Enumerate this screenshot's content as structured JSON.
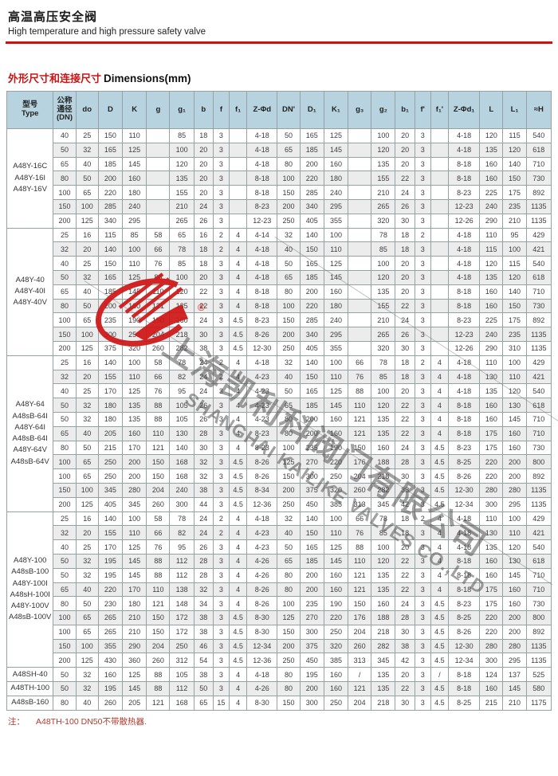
{
  "page": {
    "title_cn": "高温高压安全阀",
    "title_en": "High temperature and high pressure safety valve",
    "dim_heading_cn": "外形尺寸和连接尺寸",
    "dim_heading_en": "Dimensions(mm)",
    "note_prefix": "注：",
    "note_text": "A48TH-100  DN50不带散热器.",
    "accent_red": "#cc1111",
    "header_bg": "#b6d3df"
  },
  "watermark": {
    "company_cn": "上海凯利科阀门有限公司",
    "company_en": "SHANGHAI KAILIKE VALVES CO.,LTD",
    "registered_mark": "®",
    "logo_color": "#cf1717"
  },
  "table": {
    "col_type": {
      "line1": "型号",
      "line2": "Type"
    },
    "col_dn": {
      "line1": "公称",
      "line2": "通径",
      "line3": "(DN)"
    },
    "data_columns": [
      "do",
      "D",
      "K",
      "g",
      "g₁",
      "b",
      "f",
      "f₁",
      "Z-Φd",
      "DN'",
      "D₁",
      "K₁",
      "g₃",
      "g₂",
      "b₁",
      "f'",
      "f₁'",
      "Z-Φd₁",
      "L",
      "L₁",
      "≈H"
    ],
    "sections": [
      {
        "type_lines": [
          "A48Y-16C",
          "A48Y-16I",
          "A48Y-16V"
        ],
        "rows": [
          [
            "40",
            "25",
            "150",
            "110",
            "",
            "85",
            "18",
            "3",
            "",
            "4-18",
            "50",
            "165",
            "125",
            "",
            "100",
            "20",
            "3",
            "",
            "4-18",
            "120",
            "115",
            "540"
          ],
          [
            "50",
            "32",
            "165",
            "125",
            "",
            "100",
            "20",
            "3",
            "",
            "4-18",
            "65",
            "185",
            "145",
            "",
            "120",
            "20",
            "3",
            "",
            "4-18",
            "135",
            "120",
            "618"
          ],
          [
            "65",
            "40",
            "185",
            "145",
            "",
            "120",
            "20",
            "3",
            "",
            "4-18",
            "80",
            "200",
            "160",
            "",
            "135",
            "20",
            "3",
            "",
            "8-18",
            "160",
            "140",
            "710"
          ],
          [
            "80",
            "50",
            "200",
            "160",
            "",
            "135",
            "20",
            "3",
            "",
            "8-18",
            "100",
            "220",
            "180",
            "",
            "155",
            "22",
            "3",
            "",
            "8-18",
            "160",
            "150",
            "730"
          ],
          [
            "100",
            "65",
            "220",
            "180",
            "",
            "155",
            "20",
            "3",
            "",
            "8-18",
            "150",
            "285",
            "240",
            "",
            "210",
            "24",
            "3",
            "",
            "8-23",
            "225",
            "175",
            "892"
          ],
          [
            "150",
            "100",
            "285",
            "240",
            "",
            "210",
            "24",
            "3",
            "",
            "8-23",
            "200",
            "340",
            "295",
            "",
            "265",
            "26",
            "3",
            "",
            "12-23",
            "240",
            "235",
            "1135"
          ],
          [
            "200",
            "125",
            "340",
            "295",
            "",
            "265",
            "26",
            "3",
            "",
            "12-23",
            "250",
            "405",
            "355",
            "",
            "320",
            "30",
            "3",
            "",
            "12-26",
            "290",
            "210",
            "1135"
          ]
        ]
      },
      {
        "type_lines": [
          "A48Y-40",
          "A48Y-40I",
          "A48Y-40V"
        ],
        "rows": [
          [
            "25",
            "16",
            "115",
            "85",
            "58",
            "65",
            "16",
            "2",
            "4",
            "4-14",
            "32",
            "140",
            "100",
            "",
            "78",
            "18",
            "2",
            "",
            "4-18",
            "110",
            "95",
            "429"
          ],
          [
            "32",
            "20",
            "140",
            "100",
            "66",
            "78",
            "18",
            "2",
            "4",
            "4-18",
            "40",
            "150",
            "110",
            "",
            "85",
            "18",
            "3",
            "",
            "4-18",
            "115",
            "100",
            "421"
          ],
          [
            "40",
            "25",
            "150",
            "110",
            "76",
            "85",
            "18",
            "3",
            "4",
            "4-18",
            "50",
            "165",
            "125",
            "",
            "100",
            "20",
            "3",
            "",
            "4-18",
            "120",
            "115",
            "540"
          ],
          [
            "50",
            "32",
            "165",
            "125",
            "88",
            "100",
            "20",
            "3",
            "4",
            "4-18",
            "65",
            "185",
            "145",
            "",
            "120",
            "20",
            "3",
            "",
            "4-18",
            "135",
            "120",
            "618"
          ],
          [
            "65",
            "40",
            "185",
            "145",
            "110",
            "120",
            "22",
            "3",
            "4",
            "8-18",
            "80",
            "200",
            "160",
            "",
            "135",
            "20",
            "3",
            "",
            "8-18",
            "160",
            "140",
            "710"
          ],
          [
            "80",
            "50",
            "200",
            "160",
            "121",
            "135",
            "22",
            "3",
            "4",
            "8-18",
            "100",
            "220",
            "180",
            "",
            "155",
            "22",
            "3",
            "",
            "8-18",
            "160",
            "150",
            "730"
          ],
          [
            "100",
            "65",
            "235",
            "190",
            "150",
            "160",
            "24",
            "3",
            "4.5",
            "8-23",
            "150",
            "285",
            "240",
            "",
            "210",
            "24",
            "3",
            "",
            "8-23",
            "225",
            "175",
            "892"
          ],
          [
            "150",
            "100",
            "300",
            "250",
            "204",
            "218",
            "30",
            "3",
            "4.5",
            "8-26",
            "200",
            "340",
            "295",
            "",
            "265",
            "26",
            "3",
            "",
            "12-23",
            "240",
            "235",
            "1135"
          ],
          [
            "200",
            "125",
            "375",
            "320",
            "260",
            "282",
            "38",
            "3",
            "4.5",
            "12-30",
            "250",
            "405",
            "355",
            "",
            "320",
            "30",
            "3",
            "",
            "12-26",
            "290",
            "310",
            "1135"
          ]
        ]
      },
      {
        "type_lines": [
          "A48Y-64",
          "A48sB-64I",
          "A48Y-64I",
          "A48sB-64I",
          "A48Y-64V",
          "A48sB-64V"
        ],
        "rows": [
          [
            "25",
            "16",
            "140",
            "100",
            "58",
            "78",
            "24",
            "2",
            "4",
            "4-18",
            "32",
            "140",
            "100",
            "66",
            "78",
            "18",
            "2",
            "4",
            "4-18",
            "110",
            "100",
            "429"
          ],
          [
            "32",
            "20",
            "155",
            "110",
            "66",
            "82",
            "24",
            "2",
            "4",
            "4-23",
            "40",
            "150",
            "110",
            "76",
            "85",
            "18",
            "3",
            "4",
            "4-18",
            "130",
            "110",
            "421"
          ],
          [
            "40",
            "25",
            "170",
            "125",
            "76",
            "95",
            "24",
            "3",
            "4",
            "4-23",
            "50",
            "165",
            "125",
            "88",
            "100",
            "20",
            "3",
            "4",
            "4-18",
            "135",
            "120",
            "540"
          ],
          [
            "50",
            "32",
            "180",
            "135",
            "88",
            "105",
            "26",
            "3",
            "4",
            "4-23",
            "65",
            "185",
            "145",
            "110",
            "120",
            "22",
            "3",
            "4",
            "8-18",
            "160",
            "130",
            "618"
          ],
          [
            "50",
            "32",
            "180",
            "135",
            "88",
            "105",
            "26",
            "3",
            "4",
            "4-23",
            "80",
            "200",
            "160",
            "121",
            "135",
            "22",
            "3",
            "4",
            "8-18",
            "160",
            "145",
            "710"
          ],
          [
            "65",
            "40",
            "205",
            "160",
            "110",
            "130",
            "28",
            "3",
            "4",
            "8-23",
            "80",
            "200",
            "160",
            "121",
            "135",
            "22",
            "3",
            "4",
            "8-18",
            "175",
            "160",
            "710"
          ],
          [
            "80",
            "50",
            "215",
            "170",
            "121",
            "140",
            "30",
            "3",
            "4",
            "8-23",
            "100",
            "235",
            "190",
            "150",
            "160",
            "24",
            "3",
            "4.5",
            "8-23",
            "175",
            "160",
            "730"
          ],
          [
            "100",
            "65",
            "250",
            "200",
            "150",
            "168",
            "32",
            "3",
            "4.5",
            "8-26",
            "125",
            "270",
            "220",
            "176",
            "188",
            "28",
            "3",
            "4.5",
            "8-25",
            "220",
            "200",
            "800"
          ],
          [
            "100",
            "65",
            "250",
            "200",
            "150",
            "168",
            "32",
            "3",
            "4.5",
            "8-26",
            "150",
            "300",
            "250",
            "204",
            "218",
            "30",
            "3",
            "4.5",
            "8-26",
            "220",
            "200",
            "892"
          ],
          [
            "150",
            "100",
            "345",
            "280",
            "204",
            "240",
            "38",
            "3",
            "4.5",
            "8-34",
            "200",
            "375",
            "320",
            "260",
            "282",
            "38",
            "3",
            "4.5",
            "12-30",
            "280",
            "280",
            "1135"
          ],
          [
            "200",
            "125",
            "405",
            "345",
            "260",
            "300",
            "44",
            "3",
            "4.5",
            "12-36",
            "250",
            "450",
            "385",
            "313",
            "345",
            "42",
            "3",
            "4.5",
            "12-34",
            "300",
            "295",
            "1135"
          ]
        ]
      },
      {
        "type_lines": [
          "A48Y-100",
          "A48sB-100",
          "A48Y-100I",
          "A48sH-100I",
          "A48Y-100V",
          "A48sB-100V"
        ],
        "rows": [
          [
            "25",
            "16",
            "140",
            "100",
            "58",
            "78",
            "24",
            "2",
            "4",
            "4-18",
            "32",
            "140",
            "100",
            "66",
            "78",
            "18",
            "2",
            "4",
            "4-18",
            "110",
            "100",
            "429"
          ],
          [
            "32",
            "20",
            "155",
            "110",
            "66",
            "82",
            "24",
            "2",
            "4",
            "4-23",
            "40",
            "150",
            "110",
            "76",
            "85",
            "18",
            "3",
            "4",
            "4-18",
            "130",
            "110",
            "421"
          ],
          [
            "40",
            "25",
            "170",
            "125",
            "76",
            "95",
            "26",
            "3",
            "4",
            "4-23",
            "50",
            "165",
            "125",
            "88",
            "100",
            "20",
            "3",
            "4",
            "4-18",
            "135",
            "120",
            "540"
          ],
          [
            "50",
            "32",
            "195",
            "145",
            "88",
            "112",
            "28",
            "3",
            "4",
            "4-26",
            "65",
            "185",
            "145",
            "110",
            "120",
            "22",
            "3",
            "4",
            "8-18",
            "160",
            "130",
            "618"
          ],
          [
            "50",
            "32",
            "195",
            "145",
            "88",
            "112",
            "28",
            "3",
            "4",
            "4-26",
            "80",
            "200",
            "160",
            "121",
            "135",
            "22",
            "3",
            "4",
            "8-18",
            "160",
            "145",
            "710"
          ],
          [
            "65",
            "40",
            "220",
            "170",
            "110",
            "138",
            "32",
            "3",
            "4",
            "8-26",
            "80",
            "200",
            "160",
            "121",
            "135",
            "22",
            "3",
            "4",
            "8-18",
            "175",
            "160",
            "710"
          ],
          [
            "80",
            "50",
            "230",
            "180",
            "121",
            "148",
            "34",
            "3",
            "4",
            "8-26",
            "100",
            "235",
            "190",
            "150",
            "160",
            "24",
            "3",
            "4.5",
            "8-23",
            "175",
            "160",
            "730"
          ],
          [
            "100",
            "65",
            "265",
            "210",
            "150",
            "172",
            "38",
            "3",
            "4.5",
            "8-30",
            "125",
            "270",
            "220",
            "176",
            "188",
            "28",
            "3",
            "4.5",
            "8-25",
            "220",
            "200",
            "800"
          ],
          [
            "100",
            "65",
            "265",
            "210",
            "150",
            "172",
            "38",
            "3",
            "4.5",
            "8-30",
            "150",
            "300",
            "250",
            "204",
            "218",
            "30",
            "3",
            "4.5",
            "8-26",
            "220",
            "200",
            "892"
          ],
          [
            "150",
            "100",
            "355",
            "290",
            "204",
            "250",
            "46",
            "3",
            "4.5",
            "12-34",
            "200",
            "375",
            "320",
            "260",
            "282",
            "38",
            "3",
            "4.5",
            "12-30",
            "280",
            "280",
            "1135"
          ],
          [
            "200",
            "125",
            "430",
            "360",
            "260",
            "312",
            "54",
            "3",
            "4.5",
            "12-36",
            "250",
            "450",
            "385",
            "313",
            "345",
            "42",
            "3",
            "4.5",
            "12-34",
            "300",
            "295",
            "1135"
          ]
        ]
      },
      {
        "type_lines": [
          "A48SH-40"
        ],
        "rows": [
          [
            "50",
            "32",
            "160",
            "125",
            "88",
            "105",
            "38",
            "3",
            "4",
            "4-18",
            "80",
            "195",
            "160",
            "/",
            "135",
            "20",
            "3",
            "/",
            "8-18",
            "124",
            "137",
            "525"
          ]
        ]
      },
      {
        "type_lines": [
          "A48TH-100"
        ],
        "rows": [
          [
            "50",
            "32",
            "195",
            "145",
            "88",
            "112",
            "50",
            "3",
            "4",
            "4-26",
            "80",
            "200",
            "160",
            "121",
            "135",
            "22",
            "3",
            "4.5",
            "8-18",
            "160",
            "145",
            "580"
          ]
        ]
      },
      {
        "type_lines": [
          "A48sB-160"
        ],
        "rows": [
          [
            "80",
            "40",
            "260",
            "205",
            "121",
            "168",
            "65",
            "15",
            "4",
            "8-30",
            "150",
            "300",
            "250",
            "204",
            "218",
            "30",
            "3",
            "4.5",
            "8-25",
            "215",
            "210",
            "1175"
          ]
        ]
      }
    ]
  }
}
